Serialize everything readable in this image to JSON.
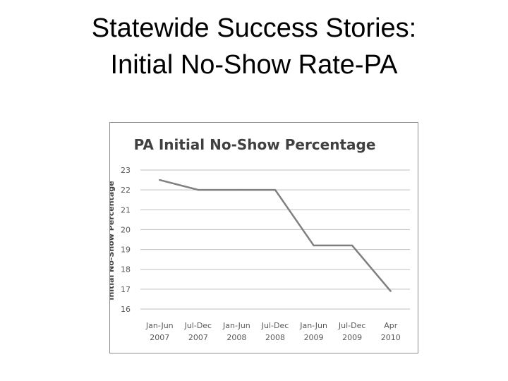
{
  "slide": {
    "title_line1": "Statewide Success Stories:",
    "title_line2": "Initial No-Show Rate-PA"
  },
  "chart_data": {
    "type": "line",
    "title": "PA Initial No-Show Percentage",
    "xlabel": "",
    "ylabel": "Initial No-Show Percentage",
    "categories": [
      [
        "Jan-Jun",
        "2007"
      ],
      [
        "Jul-Dec",
        "2007"
      ],
      [
        "Jan-Jun",
        "2008"
      ],
      [
        "Jul-Dec",
        "2008"
      ],
      [
        "Jan-Jun",
        "2009"
      ],
      [
        "Jul-Dec",
        "2009"
      ],
      [
        "Apr",
        "2010"
      ]
    ],
    "values": [
      22.5,
      22.0,
      22.0,
      22.0,
      19.2,
      19.2,
      16.9
    ],
    "ylim": [
      16,
      23
    ],
    "yticks": [
      16,
      17,
      18,
      19,
      20,
      21,
      22,
      23
    ],
    "grid": true,
    "legend": "none",
    "line_color": "#7f7f7f",
    "grid_color": "#bfbfbf"
  }
}
